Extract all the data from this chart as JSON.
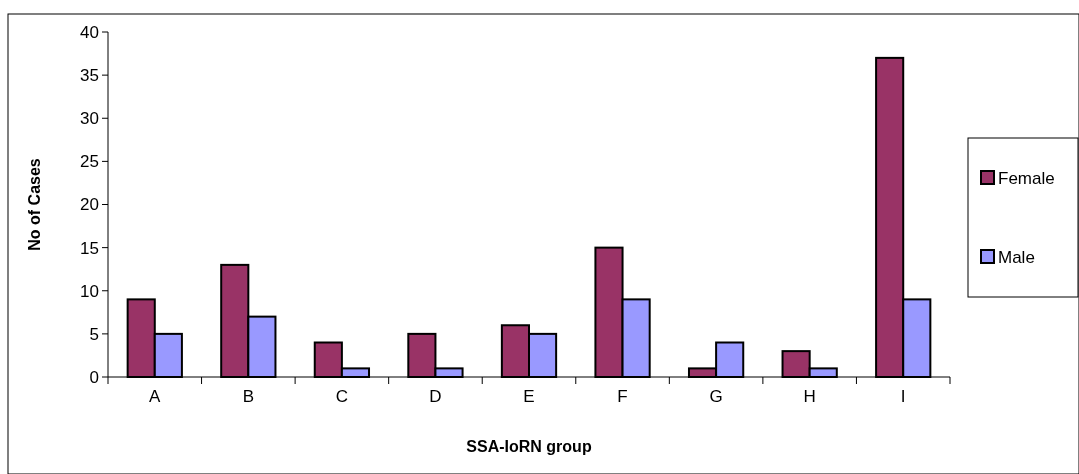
{
  "chart_data": {
    "type": "bar",
    "xlabel": "SSA-IoRN group",
    "ylabel": "No of Cases",
    "categories": [
      "A",
      "B",
      "C",
      "D",
      "E",
      "F",
      "G",
      "H",
      "I"
    ],
    "series": [
      {
        "name": "Female",
        "color": "#993366",
        "values": [
          9,
          13,
          4,
          5,
          6,
          15,
          1,
          3,
          37
        ]
      },
      {
        "name": "Male",
        "color": "#9999ff",
        "values": [
          5,
          7,
          1,
          1,
          5,
          9,
          4,
          1,
          9
        ]
      }
    ],
    "ylim": [
      0,
      40
    ],
    "yticks": [
      0,
      5,
      10,
      15,
      20,
      25,
      30,
      35,
      40
    ],
    "grid": false,
    "legend": "right"
  }
}
